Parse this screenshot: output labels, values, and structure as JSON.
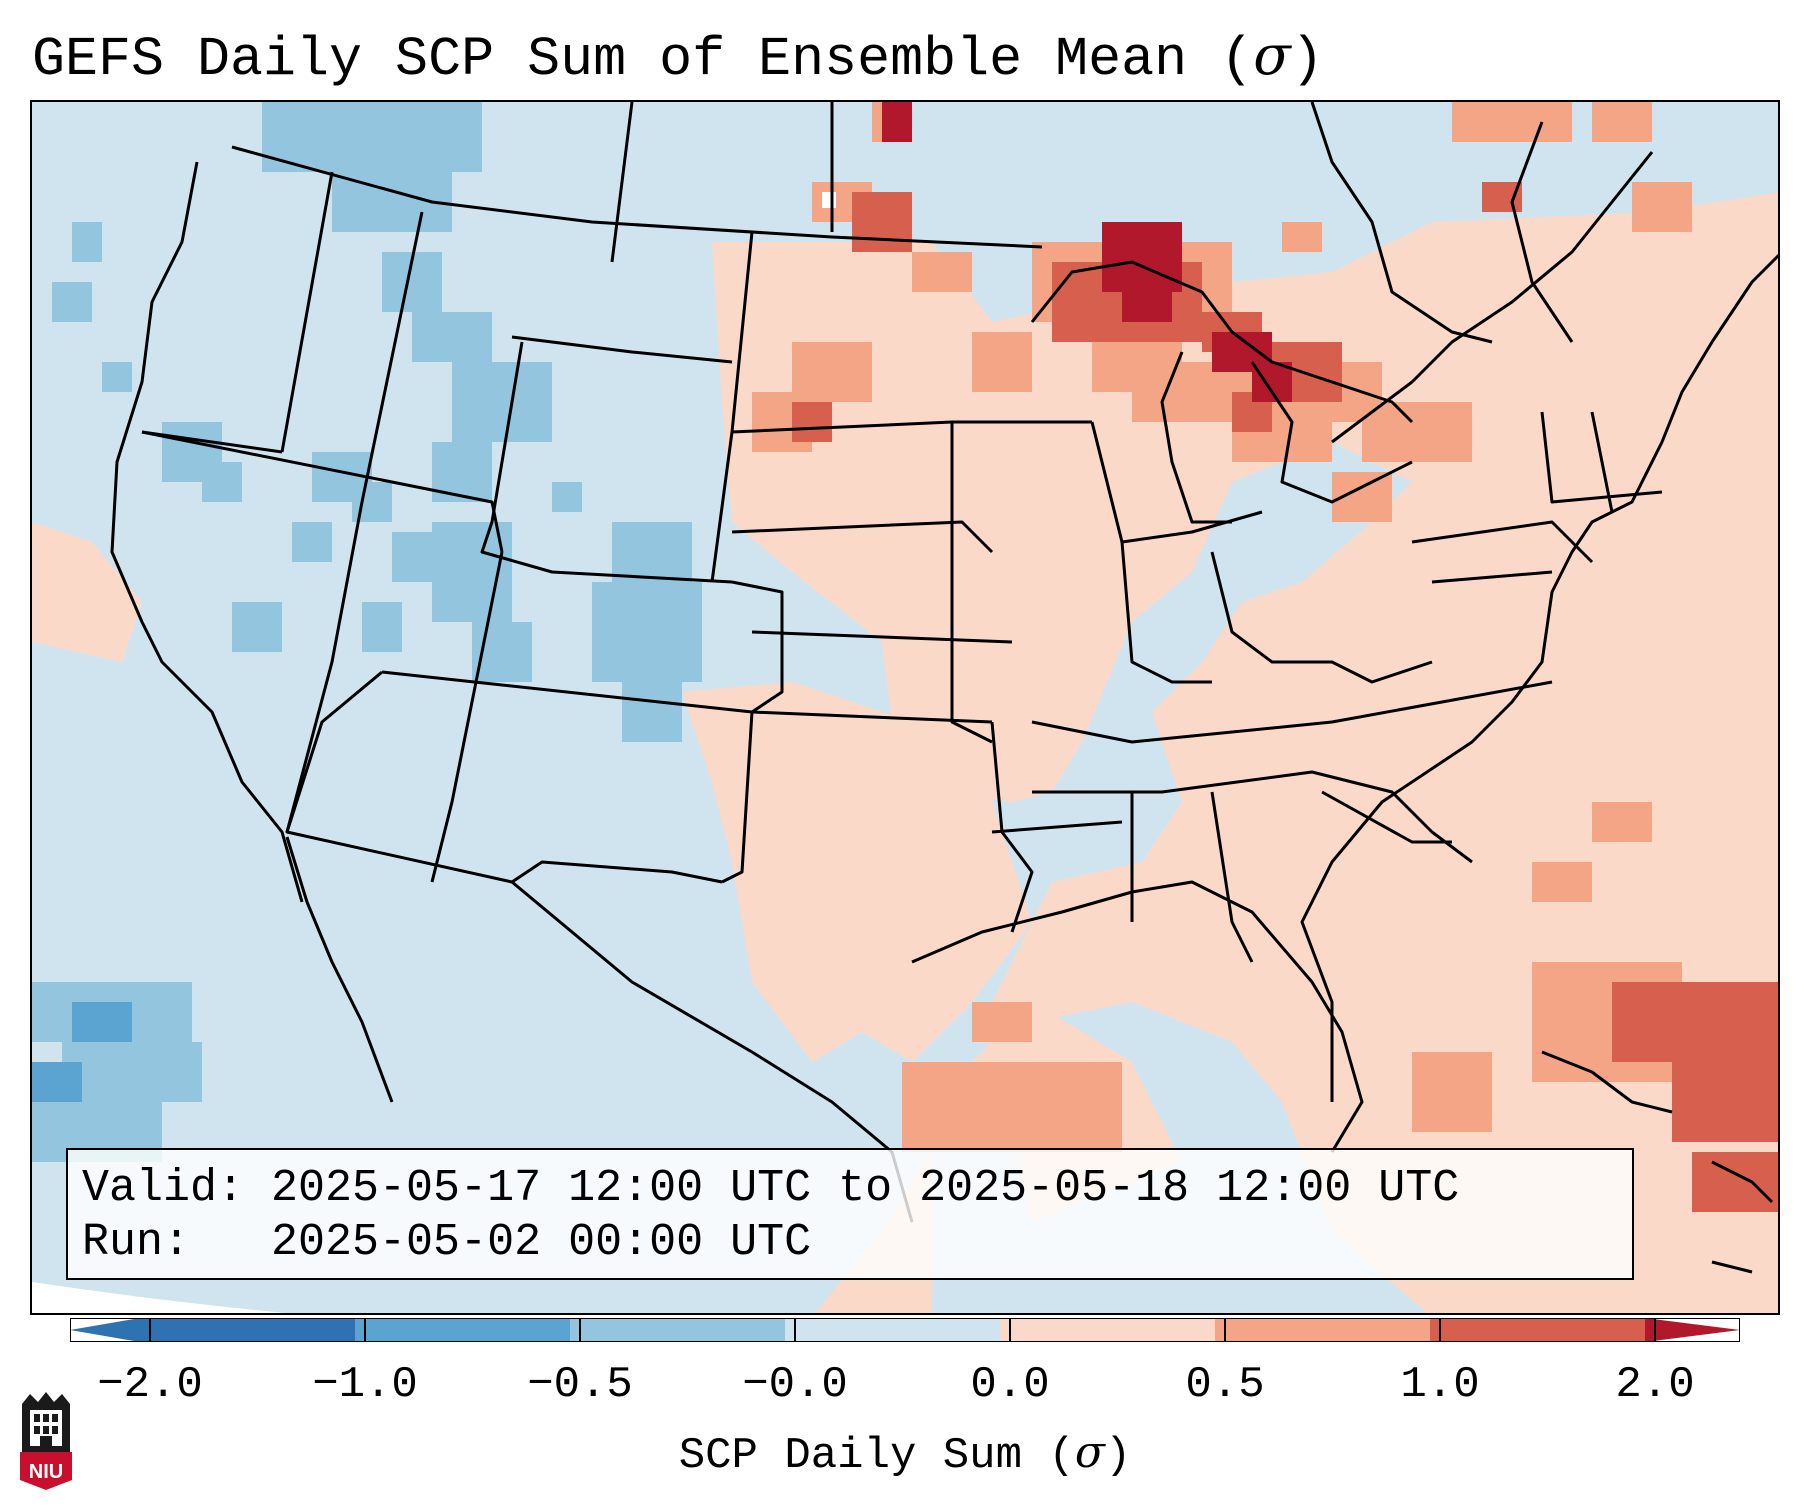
{
  "title": {
    "prefix": "GEFS Daily SCP Sum of Ensemble Mean (",
    "symbol": "σ",
    "suffix": ")"
  },
  "info": {
    "valid_line": "Valid: 2025-05-17 12:00 UTC to 2025-05-18 12:00 UTC",
    "run_line": "Run:   2025-05-02 00:00 UTC"
  },
  "colorbar": {
    "label_prefix": "SCP Daily Sum (",
    "label_symbol": "σ",
    "label_suffix": ")",
    "ticks": [
      "−2.0",
      "−1.0",
      "−0.5",
      "−0.0",
      "0.0",
      "0.5",
      "1.0",
      "2.0"
    ],
    "colors": [
      "#2f72b2",
      "#5ba3d0",
      "#93c5df",
      "#d0e4f0",
      "#fbd9c8",
      "#f3a585",
      "#d6604d",
      "#b2182b"
    ]
  },
  "logo": {
    "text": "NIU"
  },
  "map": {
    "colors": {
      "ocean_base": "#d0e4f0",
      "neutral_low": "#d0e4f0",
      "neutral_high": "#fbd9c8",
      "light_blue": "#93c5df",
      "mid_blue": "#5ba3d0",
      "light_red": "#f3a585",
      "mid_red": "#d6604d",
      "dark_red": "#b2182b",
      "borders": "#000000"
    }
  }
}
